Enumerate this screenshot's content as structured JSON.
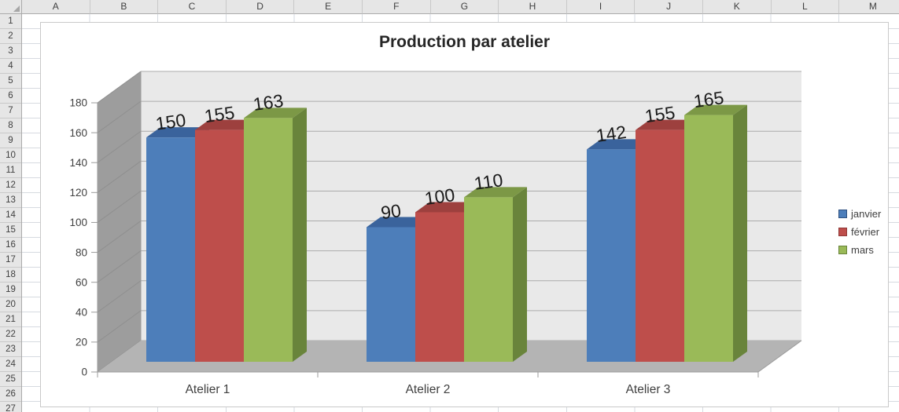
{
  "spreadsheet": {
    "column_headers": [
      "A",
      "B",
      "C",
      "D",
      "E",
      "F",
      "G",
      "H",
      "I",
      "J",
      "K",
      "L",
      "M"
    ],
    "row_numbers": [
      "1",
      "2",
      "3",
      "4",
      "5",
      "6",
      "7",
      "8",
      "9",
      "10",
      "11",
      "12",
      "13",
      "14",
      "15",
      "16",
      "17",
      "18",
      "19",
      "20",
      "21",
      "22",
      "23",
      "24",
      "25",
      "26",
      "27"
    ]
  },
  "chart_data": {
    "type": "bar",
    "variant": "3d-clustered-column",
    "title": "Production par atelier",
    "categories": [
      "Atelier 1",
      "Atelier 2",
      "Atelier 3"
    ],
    "series": [
      {
        "name": "janvier",
        "color": "#4D7EBA",
        "top_color": "#3A639C",
        "side_color": "#2F5180",
        "values": [
          150,
          90,
          142
        ]
      },
      {
        "name": "février",
        "color": "#BE4E4B",
        "top_color": "#9D403E",
        "side_color": "#8F3937",
        "values": [
          155,
          100,
          155
        ]
      },
      {
        "name": "mars",
        "color": "#9ABA58",
        "top_color": "#7C9846",
        "side_color": "#69843B",
        "values": [
          163,
          110,
          165
        ]
      }
    ],
    "ylim": [
      0,
      180
    ],
    "ytick_step": 20,
    "yticks": [
      "0",
      "20",
      "40",
      "60",
      "80",
      "100",
      "120",
      "140",
      "160",
      "180"
    ],
    "legend_position": "right",
    "grid": true,
    "data_labels_shown": true,
    "colors_env": {
      "back_wall": "#E9E9E9",
      "side_wall": "#9D9D9D",
      "floor": "#B4B4B4",
      "gridline": "#ABABAB",
      "wall_gridline": "#8F8F8F",
      "axis_line": "#9B9B9B",
      "data_label_text": "#1A1A1A",
      "axis_text": "#3F3F3F"
    }
  }
}
